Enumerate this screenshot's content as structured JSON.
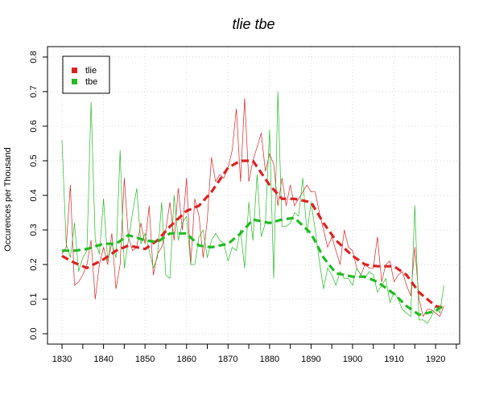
{
  "chart_data": {
    "type": "line",
    "title": "tlie tbe",
    "xlabel": "",
    "ylabel": "Occurences per Thousand",
    "xlim": [
      1830,
      1922
    ],
    "ylim": [
      0,
      0.8
    ],
    "x_ticks": [
      1830,
      1840,
      1850,
      1860,
      1870,
      1880,
      1890,
      1900,
      1910,
      1920
    ],
    "y_ticks": [
      0.0,
      0.1,
      0.2,
      0.3,
      0.4,
      0.5,
      0.6,
      0.7,
      0.8
    ],
    "grid": true,
    "legend_position": "top-left",
    "series": [
      {
        "name": "tlie",
        "color": "#dd2222",
        "x": [
          1830,
          1831,
          1832,
          1833,
          1834,
          1835,
          1836,
          1837,
          1838,
          1839,
          1840,
          1841,
          1842,
          1843,
          1844,
          1845,
          1846,
          1847,
          1848,
          1849,
          1850,
          1851,
          1852,
          1853,
          1854,
          1855,
          1856,
          1857,
          1858,
          1859,
          1860,
          1861,
          1862,
          1863,
          1864,
          1865,
          1866,
          1867,
          1868,
          1869,
          1870,
          1871,
          1872,
          1873,
          1874,
          1875,
          1876,
          1877,
          1878,
          1879,
          1880,
          1881,
          1882,
          1883,
          1884,
          1885,
          1886,
          1887,
          1888,
          1889,
          1890,
          1891,
          1892,
          1893,
          1894,
          1895,
          1896,
          1897,
          1898,
          1899,
          1900,
          1901,
          1902,
          1903,
          1904,
          1905,
          1906,
          1907,
          1908,
          1909,
          1910,
          1911,
          1912,
          1913,
          1914,
          1915,
          1916,
          1917,
          1918,
          1919,
          1920,
          1921,
          1922
        ],
        "values": [
          0.23,
          0.25,
          0.43,
          0.14,
          0.15,
          0.17,
          0.2,
          0.27,
          0.1,
          0.2,
          0.25,
          0.2,
          0.29,
          0.13,
          0.2,
          0.45,
          0.28,
          0.24,
          0.25,
          0.32,
          0.26,
          0.37,
          0.17,
          0.23,
          0.25,
          0.3,
          0.38,
          0.27,
          0.42,
          0.3,
          0.45,
          0.2,
          0.39,
          0.34,
          0.22,
          0.33,
          0.51,
          0.44,
          0.46,
          0.45,
          0.48,
          0.53,
          0.65,
          0.44,
          0.68,
          0.44,
          0.5,
          0.54,
          0.58,
          0.47,
          0.52,
          0.49,
          0.37,
          0.45,
          0.37,
          0.43,
          0.37,
          0.39,
          0.41,
          0.43,
          0.41,
          0.41,
          0.35,
          0.3,
          0.25,
          0.28,
          0.24,
          0.2,
          0.3,
          0.25,
          0.24,
          0.19,
          0.17,
          0.2,
          0.19,
          0.19,
          0.28,
          0.15,
          0.2,
          0.21,
          0.15,
          0.17,
          0.18,
          0.14,
          0.11,
          0.25,
          0.1,
          0.05,
          0.07,
          0.07,
          0.06,
          0.05,
          0.08
        ]
      },
      {
        "name": "tbe",
        "color": "#22bb22",
        "x": [
          1830,
          1831,
          1832,
          1833,
          1834,
          1835,
          1836,
          1837,
          1838,
          1839,
          1840,
          1841,
          1842,
          1843,
          1844,
          1845,
          1846,
          1847,
          1848,
          1849,
          1850,
          1851,
          1852,
          1853,
          1854,
          1855,
          1856,
          1857,
          1858,
          1859,
          1860,
          1861,
          1862,
          1863,
          1864,
          1865,
          1866,
          1867,
          1868,
          1869,
          1870,
          1871,
          1872,
          1873,
          1874,
          1875,
          1876,
          1877,
          1878,
          1879,
          1880,
          1881,
          1882,
          1883,
          1884,
          1885,
          1886,
          1887,
          1888,
          1889,
          1890,
          1891,
          1892,
          1893,
          1894,
          1895,
          1896,
          1897,
          1898,
          1899,
          1900,
          1901,
          1902,
          1903,
          1904,
          1905,
          1906,
          1907,
          1908,
          1909,
          1910,
          1911,
          1912,
          1913,
          1914,
          1915,
          1916,
          1917,
          1918,
          1919,
          1920,
          1921,
          1922
        ],
        "values": [
          0.56,
          0.26,
          0.22,
          0.32,
          0.18,
          0.22,
          0.24,
          0.67,
          0.27,
          0.23,
          0.39,
          0.21,
          0.26,
          0.22,
          0.53,
          0.19,
          0.27,
          0.35,
          0.42,
          0.26,
          0.29,
          0.24,
          0.19,
          0.22,
          0.38,
          0.17,
          0.16,
          0.4,
          0.27,
          0.32,
          0.34,
          0.2,
          0.2,
          0.28,
          0.3,
          0.22,
          0.27,
          0.29,
          0.27,
          0.26,
          0.21,
          0.25,
          0.24,
          0.3,
          0.19,
          0.38,
          0.27,
          0.46,
          0.28,
          0.32,
          0.59,
          0.16,
          0.7,
          0.31,
          0.31,
          0.32,
          0.35,
          0.34,
          0.45,
          0.29,
          0.38,
          0.3,
          0.21,
          0.13,
          0.19,
          0.17,
          0.14,
          0.18,
          0.16,
          0.16,
          0.14,
          0.19,
          0.17,
          0.16,
          0.18,
          0.17,
          0.12,
          0.14,
          0.16,
          0.09,
          0.12,
          0.1,
          0.07,
          0.06,
          0.05,
          0.37,
          0.04,
          0.04,
          0.03,
          0.05,
          0.08,
          0.06,
          0.14
        ]
      },
      {
        "name": "tlie-smooth",
        "color": "#dd2222",
        "x": [
          1830,
          1833,
          1836,
          1840,
          1843,
          1846,
          1850,
          1853,
          1856,
          1860,
          1863,
          1866,
          1870,
          1873,
          1876,
          1880,
          1883,
          1886,
          1890,
          1893,
          1896,
          1900,
          1903,
          1906,
          1910,
          1913,
          1916,
          1920,
          1922
        ],
        "values": [
          0.225,
          0.205,
          0.19,
          0.215,
          0.24,
          0.255,
          0.245,
          0.27,
          0.31,
          0.355,
          0.37,
          0.41,
          0.48,
          0.5,
          0.5,
          0.43,
          0.39,
          0.39,
          0.38,
          0.32,
          0.27,
          0.225,
          0.2,
          0.195,
          0.195,
          0.17,
          0.12,
          0.08,
          0.075
        ]
      },
      {
        "name": "tbe-smooth",
        "color": "#22bb22",
        "x": [
          1830,
          1833,
          1836,
          1840,
          1843,
          1846,
          1850,
          1853,
          1856,
          1860,
          1863,
          1866,
          1870,
          1873,
          1876,
          1880,
          1883,
          1886,
          1890,
          1893,
          1896,
          1900,
          1903,
          1906,
          1910,
          1913,
          1916,
          1920,
          1922
        ],
        "values": [
          0.24,
          0.24,
          0.245,
          0.26,
          0.26,
          0.285,
          0.27,
          0.265,
          0.29,
          0.29,
          0.255,
          0.25,
          0.26,
          0.29,
          0.33,
          0.32,
          0.33,
          0.335,
          0.29,
          0.22,
          0.175,
          0.165,
          0.165,
          0.15,
          0.115,
          0.08,
          0.055,
          0.065,
          0.085
        ]
      }
    ]
  }
}
